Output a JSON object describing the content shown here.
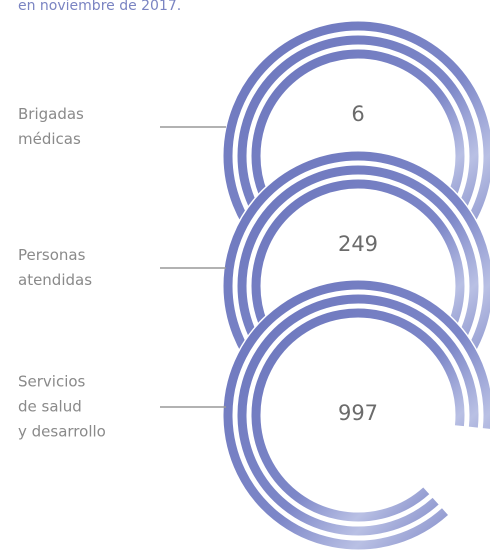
{
  "intro": "en noviembre de 2017.",
  "items": [
    {
      "label": [
        "Brigadas",
        "médicas"
      ],
      "value": 6
    },
    {
      "label": [
        "Personas",
        "atendidas"
      ],
      "value": 249
    },
    {
      "label": [
        "Servicios",
        "de salud",
        "y desarrollo"
      ],
      "value": 997
    }
  ]
}
